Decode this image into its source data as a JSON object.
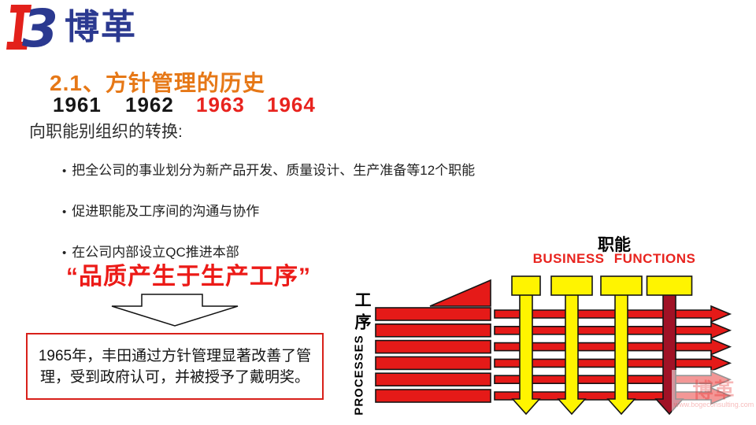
{
  "logo": {
    "text": "博革",
    "mark_red": "#E3211B",
    "mark_blue": "#2B3990"
  },
  "title": {
    "text": "2.1、方针管理的历史",
    "color": "#E67817"
  },
  "timeline": {
    "years": [
      {
        "label": "1961",
        "color": "#161616"
      },
      {
        "label": "1962",
        "color": "#161616"
      },
      {
        "label": "1963",
        "color": "#E8231E"
      },
      {
        "label": "1964",
        "color": "#E8231E"
      }
    ]
  },
  "subheading": "向职能别组织的转换:",
  "bullet_marker": "•",
  "bullets": [
    "把全公司的事业划分为新产品开发、质量设计、生产准备等12个职能",
    "促进职能及工序间的沟通与协作",
    "在公司内部设立QC推进本部"
  ],
  "quote": {
    "text": "“品质产生于生产工序”",
    "color": "#EC1A17"
  },
  "award_box": {
    "text": "1965年，丰田通过方针管理显著改善了管理，受到政府认可，并被授予了戴明奖。",
    "border_color": "#D8201A"
  },
  "diagram": {
    "functions_label_cn": "职能",
    "functions_label_en": "BUSINESS  FUNCTIONS",
    "processes_label_cn": "工序",
    "processes_label_en": "PROCESSES",
    "process_rows": 6,
    "function_columns": 4,
    "highlight_column_index": 3,
    "colors": {
      "red": "#E51A18",
      "dark_red": "#A01226",
      "yellow": "#FFF400",
      "outline": "#151515"
    }
  },
  "watermark": {
    "logo_text": "博革",
    "url": "www.bogeconsulting.com"
  }
}
